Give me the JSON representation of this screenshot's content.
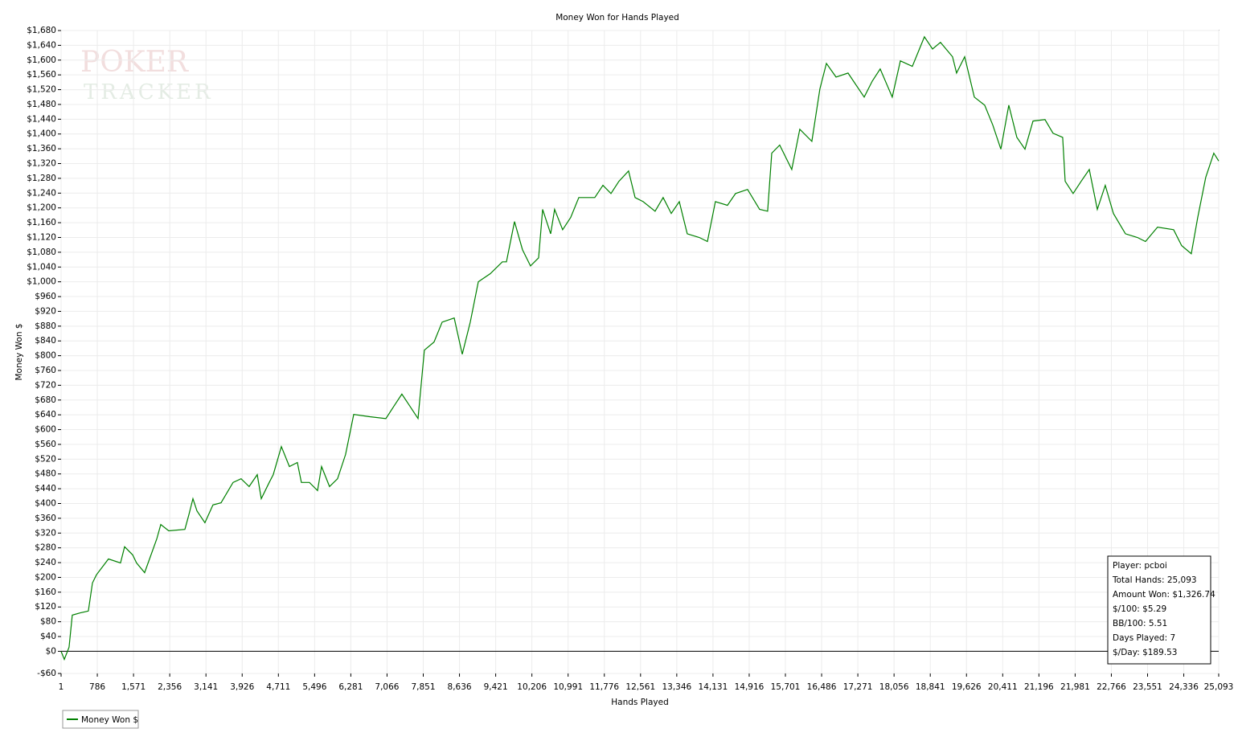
{
  "chart_data": {
    "type": "line",
    "title": "Money Won for Hands Played",
    "x_label": "Hands Played",
    "y_label": "Money Won $",
    "watermark": [
      "POKER",
      "TRACKER"
    ],
    "grid": true,
    "legend": "bottom-left",
    "xlim": [
      1,
      25093
    ],
    "ylim": [
      -60,
      1680
    ],
    "xticks": [
      1,
      786,
      {
        "value": 1571,
        "label": "1,571"
      },
      {
        "value": 2356,
        "label": "2,356"
      },
      {
        "value": 3141,
        "label": "3,141"
      },
      {
        "value": 3926,
        "label": "3,926"
      },
      {
        "value": 4711,
        "label": "4,711"
      },
      {
        "value": 5496,
        "label": "5,496"
      },
      {
        "value": 6281,
        "label": "6,281"
      },
      {
        "value": 7066,
        "label": "7,066"
      },
      {
        "value": 7851,
        "label": "7,851"
      },
      {
        "value": 8636,
        "label": "8,636"
      },
      {
        "value": 9421,
        "label": "9,421"
      },
      {
        "value": 10206,
        "label": "10,206"
      },
      {
        "value": 10991,
        "label": "10,991"
      },
      {
        "value": 11776,
        "label": "11,776"
      },
      {
        "value": 12561,
        "label": "12,561"
      },
      {
        "value": 13346,
        "label": "13,346"
      },
      {
        "value": 14131,
        "label": "14,131"
      },
      {
        "value": 14916,
        "label": "14,916"
      },
      {
        "value": 15701,
        "label": "15,701"
      },
      {
        "value": 16486,
        "label": "16,486"
      },
      {
        "value": 17271,
        "label": "17,271"
      },
      {
        "value": 18056,
        "label": "18,056"
      },
      {
        "value": 18841,
        "label": "18,841"
      },
      {
        "value": 19626,
        "label": "19,626"
      },
      {
        "value": 20411,
        "label": "20,411"
      },
      {
        "value": 21196,
        "label": "21,196"
      },
      {
        "value": 21981,
        "label": "21,981"
      },
      {
        "value": 22766,
        "label": "22,766"
      },
      {
        "value": 23551,
        "label": "23,551"
      },
      {
        "value": 24336,
        "label": "24,336"
      },
      {
        "value": 25093,
        "label": "25,093"
      }
    ],
    "yticks": [
      {
        "value": -60,
        "label": "-$60"
      },
      {
        "value": 0,
        "label": "$0"
      },
      {
        "value": 40,
        "label": "$40"
      },
      {
        "value": 80,
        "label": "$80"
      },
      {
        "value": 120,
        "label": "$120"
      },
      {
        "value": 160,
        "label": "$160"
      },
      {
        "value": 200,
        "label": "$200"
      },
      {
        "value": 240,
        "label": "$240"
      },
      {
        "value": 280,
        "label": "$280"
      },
      {
        "value": 320,
        "label": "$320"
      },
      {
        "value": 360,
        "label": "$360"
      },
      {
        "value": 400,
        "label": "$400"
      },
      {
        "value": 440,
        "label": "$440"
      },
      {
        "value": 480,
        "label": "$480"
      },
      {
        "value": 520,
        "label": "$520"
      },
      {
        "value": 560,
        "label": "$560"
      },
      {
        "value": 600,
        "label": "$600"
      },
      {
        "value": 640,
        "label": "$640"
      },
      {
        "value": 680,
        "label": "$680"
      },
      {
        "value": 720,
        "label": "$720"
      },
      {
        "value": 760,
        "label": "$760"
      },
      {
        "value": 800,
        "label": "$800"
      },
      {
        "value": 840,
        "label": "$840"
      },
      {
        "value": 880,
        "label": "$880"
      },
      {
        "value": 920,
        "label": "$920"
      },
      {
        "value": 960,
        "label": "$960"
      },
      {
        "value": 1000,
        "label": "$1,000"
      },
      {
        "value": 1040,
        "label": "$1,040"
      },
      {
        "value": 1080,
        "label": "$1,080"
      },
      {
        "value": 1120,
        "label": "$1,120"
      },
      {
        "value": 1160,
        "label": "$1,160"
      },
      {
        "value": 1200,
        "label": "$1,200"
      },
      {
        "value": 1240,
        "label": "$1,240"
      },
      {
        "value": 1280,
        "label": "$1,280"
      },
      {
        "value": 1320,
        "label": "$1,320"
      },
      {
        "value": 1360,
        "label": "$1,360"
      },
      {
        "value": 1400,
        "label": "$1,400"
      },
      {
        "value": 1440,
        "label": "$1,440"
      },
      {
        "value": 1480,
        "label": "$1,480"
      },
      {
        "value": 1520,
        "label": "$1,520"
      },
      {
        "value": 1560,
        "label": "$1,560"
      },
      {
        "value": 1600,
        "label": "$1,600"
      },
      {
        "value": 1640,
        "label": "$1,640"
      },
      {
        "value": 1680,
        "label": "$1,680"
      }
    ],
    "x": [
      1,
      70,
      174,
      244,
      418,
      592,
      680,
      767,
      1028,
      1289,
      1377,
      1551,
      1638,
      1812,
      2074,
      2161,
      2335,
      2684,
      2771,
      2858,
      2945,
      3119,
      3293,
      3468,
      3729,
      3903,
      4077,
      4252,
      4339,
      4513,
      4600,
      4775,
      4949,
      5123,
      5210,
      5384,
      5559,
      5646,
      5820,
      5994,
      6168,
      6343,
      6691,
      7040,
      7214,
      7388,
      7563,
      7737,
      7876,
      8085,
      8260,
      8521,
      8696,
      8870,
      9044,
      9305,
      9566,
      9654,
      9828,
      10002,
      10176,
      10351,
      10438,
      10612,
      10699,
      10873,
      11047,
      11222,
      11570,
      11745,
      11919,
      12093,
      12302,
      12442,
      12616,
      12877,
      13051,
      13226,
      13400,
      13574,
      13835,
      14010,
      14184,
      14445,
      14620,
      14881,
      15142,
      15316,
      15404,
      15578,
      15839,
      16013,
      16275,
      16449,
      16589,
      16798,
      17059,
      17408,
      17582,
      17756,
      18017,
      18192,
      18453,
      18714,
      18889,
      19063,
      19324,
      19411,
      19586,
      19795,
      20021,
      20196,
      20370,
      20544,
      20718,
      20893,
      21067,
      21328,
      21502,
      21711,
      21764,
      21938,
      22112,
      22287,
      22461,
      22635,
      22810,
      23071,
      23332,
      23506,
      23767,
      24115,
      24290,
      24499,
      24638,
      24813,
      24987,
      25093
    ],
    "series": [
      {
        "name": "Money Won $",
        "color": "#008000",
        "values": [
          0,
          -22,
          11,
          98,
          104,
          109,
          185,
          207,
          250,
          239,
          283,
          261,
          239,
          213,
          304,
          343,
          326,
          330,
          370,
          413,
          380,
          348,
          396,
          402,
          457,
          467,
          446,
          478,
          413,
          457,
          478,
          554,
          500,
          511,
          457,
          457,
          435,
          500,
          446,
          467,
          533,
          641,
          635,
          630,
          663,
          696,
          663,
          630,
          815,
          837,
          891,
          902,
          804,
          891,
          1000,
          1022,
          1054,
          1054,
          1163,
          1087,
          1043,
          1065,
          1196,
          1130,
          1196,
          1141,
          1174,
          1228,
          1228,
          1261,
          1239,
          1272,
          1300,
          1228,
          1217,
          1191,
          1228,
          1185,
          1217,
          1130,
          1120,
          1109,
          1217,
          1207,
          1239,
          1250,
          1196,
          1191,
          1348,
          1370,
          1304,
          1413,
          1380,
          1522,
          1591,
          1554,
          1565,
          1500,
          1543,
          1576,
          1500,
          1598,
          1583,
          1663,
          1630,
          1648,
          1609,
          1565,
          1609,
          1500,
          1478,
          1424,
          1359,
          1478,
          1391,
          1359,
          1435,
          1439,
          1402,
          1391,
          1272,
          1239,
          1272,
          1304,
          1196,
          1261,
          1185,
          1130,
          1120,
          1109,
          1148,
          1141,
          1098,
          1076,
          1174,
          1283,
          1348,
          1327
        ]
      }
    ],
    "annotations": [
      "Player: pcboi",
      "Total Hands: 25,093",
      "Amount Won: $1,326.74",
      "$/100: $5.29",
      "BB/100: 5.51",
      "Days Played: 7",
      "$/Day: $189.53"
    ]
  }
}
